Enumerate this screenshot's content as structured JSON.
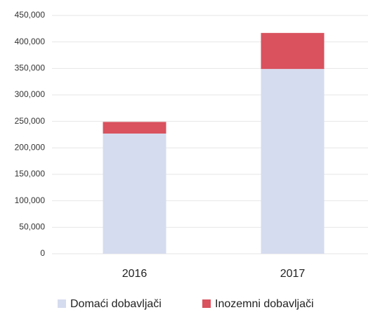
{
  "chart_data": {
    "type": "stacked_bar",
    "categories": [
      "2016",
      "2017"
    ],
    "series": [
      {
        "name": "Domaći dobavljači",
        "color": "#d6dcef",
        "values": [
          227000,
          349000
        ]
      },
      {
        "name": "Inozemni dobavljači",
        "color": "#d9525e",
        "values": [
          22000,
          68000
        ]
      }
    ],
    "ylim": [
      0,
      450000
    ],
    "yticks": [
      0,
      {
        "value": 50000,
        "label": "50,000"
      },
      {
        "value": 100000,
        "label": "100,000"
      },
      {
        "value": 150000,
        "label": "150,000"
      },
      {
        "value": 200000,
        "label": "200,000"
      },
      {
        "value": 250000,
        "label": "250,000"
      },
      {
        "value": 300000,
        "label": "300,000"
      },
      {
        "value": 350000,
        "label": "350,000"
      },
      {
        "value": 400000,
        "label": "400,000"
      },
      {
        "value": 450000,
        "label": "450,000"
      }
    ],
    "grid": true,
    "legend": "bottom"
  }
}
